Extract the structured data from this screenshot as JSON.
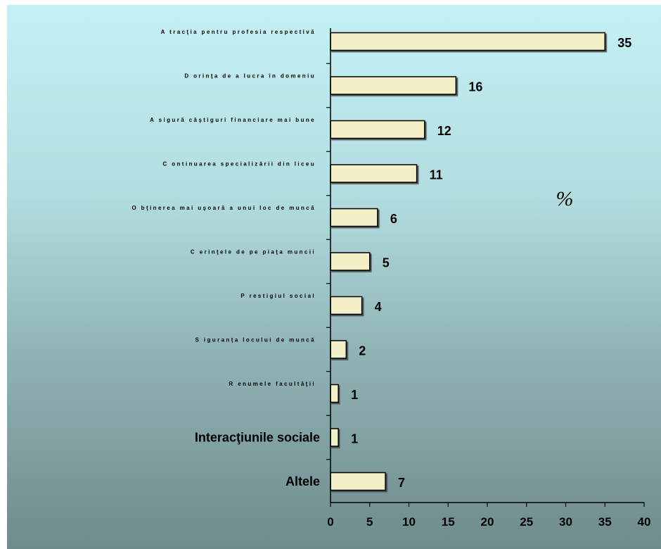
{
  "chart_data": {
    "type": "bar",
    "orientation": "horizontal",
    "unit_label": "%",
    "categories": [
      "A tracţia pentru profesia respectivă",
      "D orinţa de a lucra în domeniu",
      "A sigură câştiguri financiare mai bune",
      "C ontinuarea specializării din liceu",
      "O bţinerea mai uşoară a unui loc de muncă",
      "C erinţele de pe piaţa muncii",
      "P restigiul social",
      "S iguranţa locului de muncă",
      "R enumele facultăţii",
      "Interacţiunile sociale",
      "Altele"
    ],
    "values": [
      35,
      16,
      12,
      11,
      6,
      5,
      4,
      2,
      1,
      1,
      7
    ],
    "value_labels": [
      "35",
      "16",
      "12",
      "11",
      "6",
      "5",
      "4",
      "2",
      "1",
      "1",
      "7"
    ],
    "large_label_categories": [
      9,
      10
    ],
    "xlim": [
      0,
      40
    ],
    "x_ticks": [
      "0",
      "5",
      "10",
      "15",
      "20",
      "25",
      "30",
      "35",
      "40"
    ],
    "bar_color": "#f3efc6",
    "bar_border": "#000000",
    "grid": false,
    "legend": "none"
  }
}
